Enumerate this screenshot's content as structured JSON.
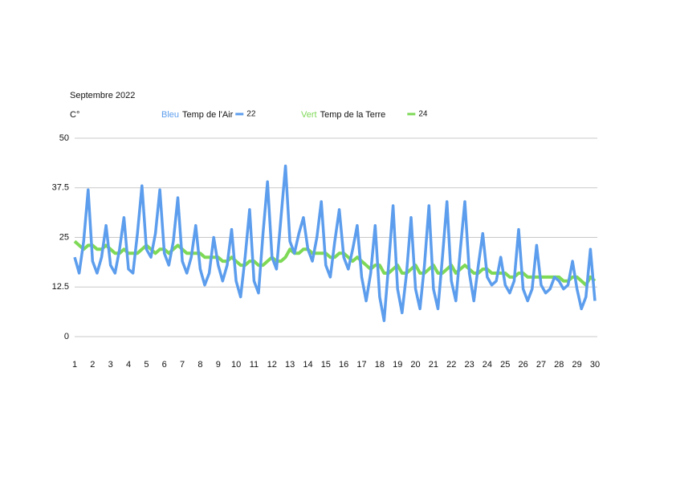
{
  "chart_data": {
    "type": "line",
    "title": "Septembre  2022",
    "y_label": "C°",
    "xlim": [
      1,
      30
    ],
    "xticks": [
      1,
      2,
      3,
      4,
      5,
      6,
      7,
      8,
      9,
      10,
      11,
      12,
      13,
      14,
      15,
      16,
      17,
      18,
      19,
      20,
      21,
      22,
      23,
      24,
      25,
      26,
      27,
      28,
      29,
      30
    ],
    "ylim": [
      0,
      50
    ],
    "yticks": [
      0,
      12.5,
      25,
      37.5,
      50
    ],
    "grid": true,
    "x": [
      1,
      1.25,
      1.5,
      1.75,
      2,
      2.25,
      2.5,
      2.75,
      3,
      3.25,
      3.5,
      3.75,
      4,
      4.25,
      4.5,
      4.75,
      5,
      5.25,
      5.5,
      5.75,
      6,
      6.25,
      6.5,
      6.75,
      7,
      7.25,
      7.5,
      7.75,
      8,
      8.25,
      8.5,
      8.75,
      9,
      9.25,
      9.5,
      9.75,
      10,
      10.25,
      10.5,
      10.75,
      11,
      11.25,
      11.5,
      11.75,
      12,
      12.25,
      12.5,
      12.75,
      13,
      13.25,
      13.5,
      13.75,
      14,
      14.25,
      14.5,
      14.75,
      15,
      15.25,
      15.5,
      15.75,
      16,
      16.25,
      16.5,
      16.75,
      17,
      17.25,
      17.5,
      17.75,
      18,
      18.25,
      18.5,
      18.75,
      19,
      19.25,
      19.5,
      19.75,
      20,
      20.25,
      20.5,
      20.75,
      21,
      21.25,
      21.5,
      21.75,
      22,
      22.25,
      22.5,
      22.75,
      23,
      23.25,
      23.5,
      23.75,
      24,
      24.25,
      24.5,
      24.75,
      25,
      25.25,
      25.5,
      25.75,
      26,
      26.25,
      26.5,
      26.75,
      27,
      27.25,
      27.5,
      27.75,
      28,
      28.25,
      28.5,
      28.75,
      29,
      29.25,
      29.5,
      29.75,
      30
    ],
    "series": [
      {
        "name": "Temp de l'Air",
        "legend_prefix": "Bleu",
        "legend_value": "22",
        "color": "#5c9ded",
        "values": [
          20,
          16,
          24,
          37,
          19,
          16,
          20,
          28,
          18,
          16,
          22,
          30,
          17,
          16,
          26,
          38,
          22,
          20,
          26,
          37,
          21,
          18,
          24,
          35,
          19,
          16,
          20,
          28,
          17,
          13,
          16,
          25,
          18,
          14,
          18,
          27,
          14,
          10,
          20,
          32,
          14,
          11,
          26,
          39,
          20,
          17,
          30,
          43,
          24,
          21,
          26,
          30,
          22,
          19,
          25,
          34,
          18,
          15,
          24,
          32,
          20,
          17,
          22,
          28,
          15,
          9,
          16,
          28,
          10,
          4,
          18,
          33,
          12,
          6,
          16,
          30,
          12,
          7,
          18,
          33,
          12,
          7,
          20,
          34,
          14,
          9,
          22,
          34,
          16,
          9,
          18,
          26,
          15,
          13,
          14,
          20,
          13,
          11,
          14,
          27,
          12,
          9,
          12,
          23,
          13,
          11,
          12,
          15,
          14,
          12,
          13,
          19,
          12,
          7,
          10,
          22,
          9
        ]
      },
      {
        "name": "Temp de la Terre",
        "legend_prefix": "Vert",
        "legend_value": "24",
        "color": "#7ed957",
        "values": [
          24,
          23,
          22,
          23,
          23,
          22,
          22,
          23,
          22,
          21,
          21,
          22,
          21,
          21,
          21,
          22,
          23,
          22,
          21,
          22,
          22,
          21,
          22,
          23,
          22,
          21,
          21,
          21,
          21,
          20,
          20,
          20,
          20,
          19,
          19,
          20,
          19,
          18,
          18,
          19,
          19,
          18,
          18,
          19,
          20,
          19,
          19,
          20,
          22,
          21,
          21,
          22,
          22,
          21,
          21,
          21,
          21,
          20,
          20,
          21,
          21,
          20,
          19,
          20,
          19,
          18,
          17,
          18,
          18,
          16,
          16,
          17,
          18,
          16,
          16,
          17,
          18,
          16,
          16,
          17,
          18,
          16,
          16,
          17,
          18,
          16,
          17,
          18,
          17,
          16,
          16,
          17,
          17,
          16,
          16,
          16,
          16,
          15,
          15,
          16,
          16,
          15,
          15,
          15,
          15,
          15,
          15,
          15,
          15,
          14,
          14,
          15,
          15,
          14,
          13,
          15,
          14
        ]
      }
    ]
  }
}
